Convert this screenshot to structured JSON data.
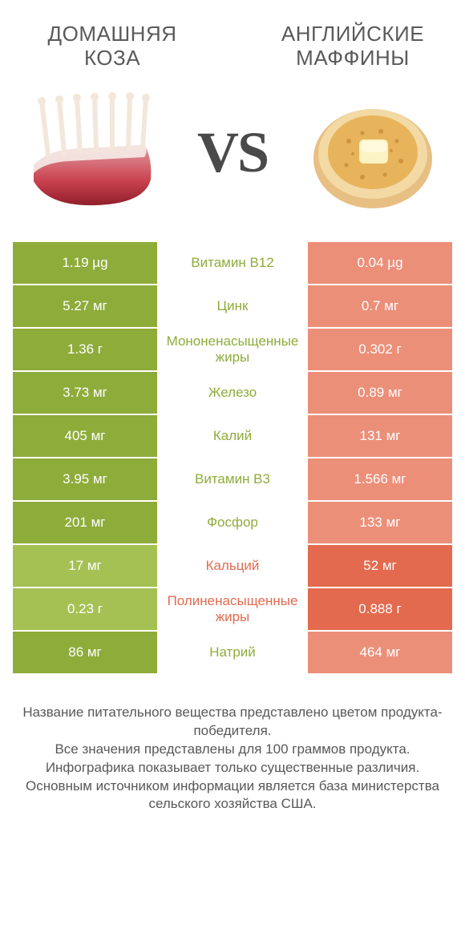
{
  "colors": {
    "left_bg_strong": "#8eac3a",
    "left_bg_weak": "#a5c153",
    "right_bg_strong": "#e36a4f",
    "right_bg_weak": "#ec8f79",
    "mid_text_left": "#8eac3a",
    "mid_text_right": "#e36a4f",
    "title_color": "#5a5a5a",
    "footer_color": "#585858"
  },
  "titles": {
    "left": "ДОМАШНЯЯ КОЗА",
    "right": "АНГЛИЙСКИЕ МАФФИНЫ"
  },
  "vs": "VS",
  "rows": [
    {
      "left": "1.19 µg",
      "mid": "Витамин B12",
      "right": "0.04 µg",
      "winner": "left"
    },
    {
      "left": "5.27 мг",
      "mid": "Цинк",
      "right": "0.7 мг",
      "winner": "left"
    },
    {
      "left": "1.36 г",
      "mid": "Мононенасыщенные жиры",
      "right": "0.302 г",
      "winner": "left"
    },
    {
      "left": "3.73 мг",
      "mid": "Железо",
      "right": "0.89 мг",
      "winner": "left"
    },
    {
      "left": "405 мг",
      "mid": "Калий",
      "right": "131 мг",
      "winner": "left"
    },
    {
      "left": "3.95 мг",
      "mid": "Витамин B3",
      "right": "1.566 мг",
      "winner": "left"
    },
    {
      "left": "201 мг",
      "mid": "Фосфор",
      "right": "133 мг",
      "winner": "left"
    },
    {
      "left": "17 мг",
      "mid": "Кальций",
      "right": "52 мг",
      "winner": "right"
    },
    {
      "left": "0.23 г",
      "mid": "Полиненасыщенные жиры",
      "right": "0.888 г",
      "winner": "right"
    },
    {
      "left": "86 мг",
      "mid": "Натрий",
      "right": "464 мг",
      "winner": "left"
    }
  ],
  "footer_lines": [
    "Название питательного вещества представлено цветом продукта-победителя.",
    "Все значения представлены для 100 граммов продукта.",
    "Инфографика показывает только существенные различия.",
    "Основным источником информации является база министерства сельского хозяйства США."
  ]
}
